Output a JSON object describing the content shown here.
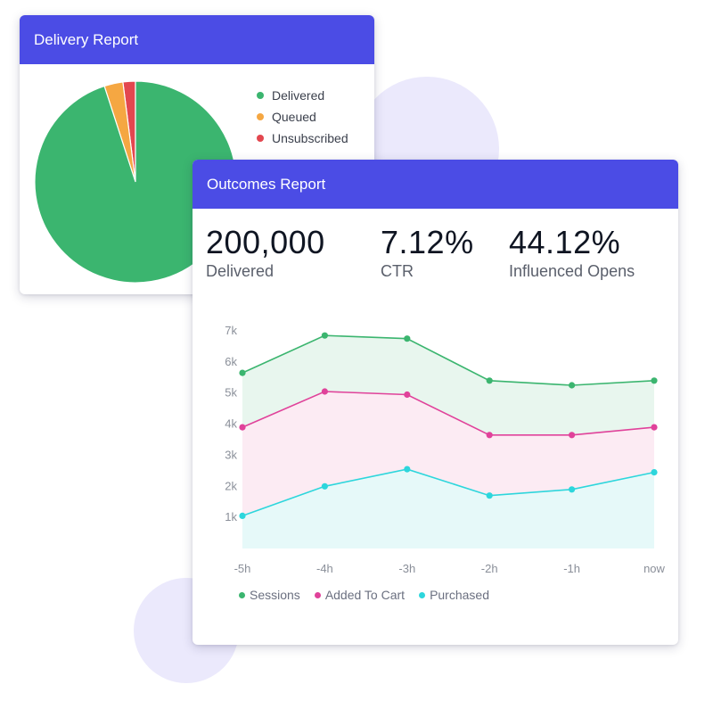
{
  "delivery_report": {
    "title": "Delivery Report",
    "legend": [
      {
        "label": "Delivered",
        "color": "#3bb56f"
      },
      {
        "label": "Queued",
        "color": "#f5a742"
      },
      {
        "label": "Unsubscribed",
        "color": "#e3474f"
      }
    ]
  },
  "outcomes_report": {
    "title": "Outcomes Report",
    "stats": [
      {
        "value": "200,000",
        "label": "Delivered"
      },
      {
        "value": "7.12%",
        "label": "CTR"
      },
      {
        "value": "44.12%",
        "label": "Influenced Opens"
      }
    ]
  },
  "chart_data": [
    {
      "type": "pie",
      "slices": [
        {
          "label": "Delivered",
          "value": 95,
          "color": "#3bb56f"
        },
        {
          "label": "Queued",
          "value": 3,
          "color": "#f5a742"
        },
        {
          "label": "Unsubscribed",
          "value": 2,
          "color": "#e3474f"
        }
      ],
      "legend_position": "right"
    },
    {
      "type": "area",
      "categories": [
        "-5h",
        "-4h",
        "-3h",
        "-2h",
        "-1h",
        "now"
      ],
      "series": [
        {
          "name": "Sessions",
          "color": "#3bb56f",
          "fill": "#e8f6ee",
          "values": [
            5650,
            6850,
            6750,
            5400,
            5250,
            5400
          ]
        },
        {
          "name": "Added To Cart",
          "color": "#e0429a",
          "fill": "#fcebf3",
          "values": [
            3900,
            5050,
            4950,
            3650,
            3650,
            3900
          ]
        },
        {
          "name": "Purchased",
          "color": "#2dd6dc",
          "fill": "#e6f9f9",
          "values": [
            1050,
            2000,
            2550,
            1700,
            1900,
            2450
          ]
        }
      ],
      "y_ticks": [
        "1k",
        "2k",
        "3k",
        "4k",
        "5k",
        "6k",
        "7k"
      ],
      "ylim": [
        0,
        7000
      ],
      "grid": false,
      "legend_position": "bottom-left"
    }
  ]
}
